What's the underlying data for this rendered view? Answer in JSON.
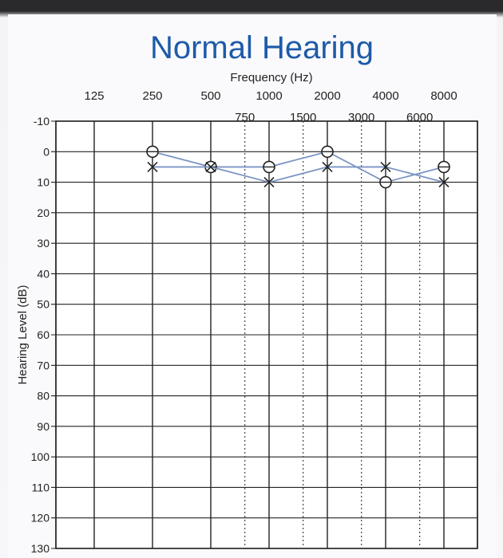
{
  "chart_data": {
    "type": "scatter",
    "title": "Normal Hearing",
    "xlabel": "Frequency (Hz)",
    "ylabel": "Hearing Level (dB)",
    "x_scale": "log-octave",
    "x_major_ticks": [
      "125",
      "250",
      "500",
      "1000",
      "2000",
      "4000",
      "8000"
    ],
    "x_minor_ticks": [
      "750",
      "1500",
      "3000",
      "6000"
    ],
    "y_ticks": [
      "-10",
      "0",
      "10",
      "20",
      "30",
      "40",
      "50",
      "60",
      "70",
      "80",
      "90",
      "100",
      "110",
      "120",
      "130"
    ],
    "ylim": [
      -10,
      130
    ],
    "y_inverted": true,
    "grid": true,
    "series": [
      {
        "marker": "circle-cross",
        "color": "#7b95c4",
        "x": [
          250,
          500,
          1000,
          2000,
          4000,
          8000
        ],
        "y": [
          0,
          5,
          5,
          0,
          10,
          5
        ]
      },
      {
        "marker": "x",
        "color": "#7b95c4",
        "x": [
          250,
          500,
          1000,
          2000,
          4000,
          8000
        ],
        "y": [
          5,
          5,
          10,
          5,
          5,
          10
        ]
      }
    ]
  }
}
